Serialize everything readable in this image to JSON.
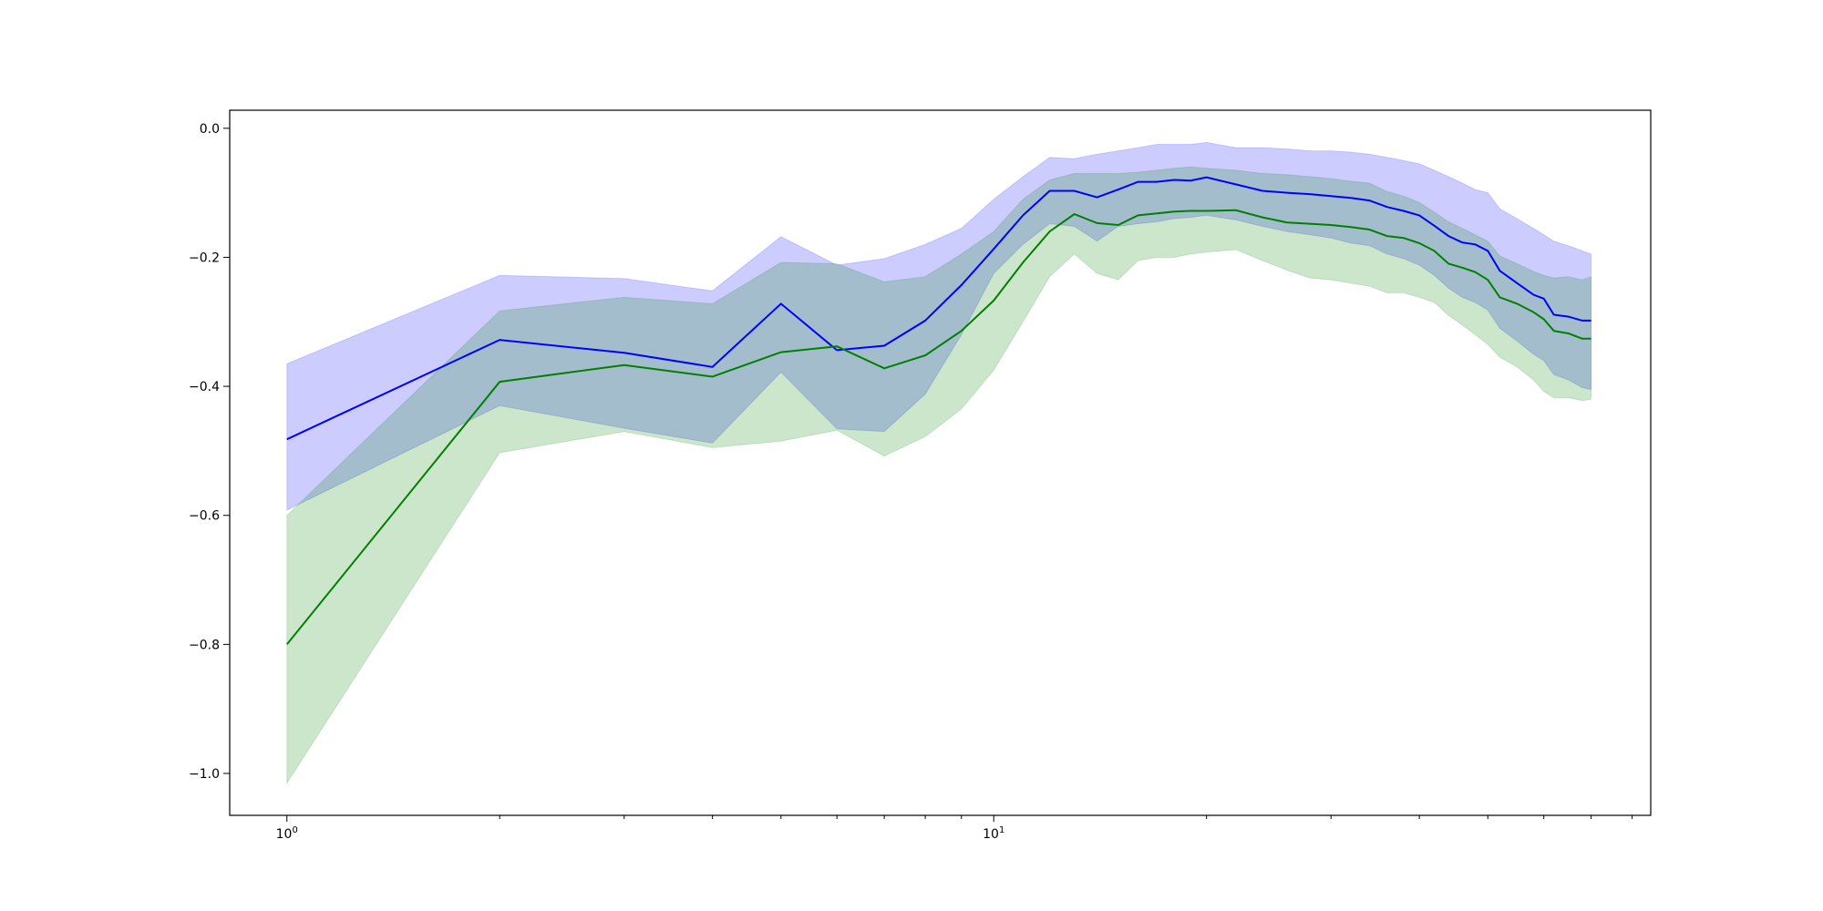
{
  "chart_data": {
    "type": "line",
    "title": "",
    "xlabel": "",
    "ylabel": "",
    "x_scale": "log",
    "xlim": [
      0.83,
      85
    ],
    "ylim": [
      -1.065,
      0.028
    ],
    "grid": false,
    "x_ticks": [
      {
        "value": 1,
        "base": "10",
        "exp": "0"
      },
      {
        "value": 10,
        "base": "10",
        "exp": "1"
      }
    ],
    "x_minor_ticks": [
      2,
      3,
      4,
      5,
      6,
      7,
      8,
      9,
      20,
      30,
      40,
      50,
      60,
      70,
      80
    ],
    "y_ticks": [
      {
        "value": 0.0,
        "label": "0.0"
      },
      {
        "value": -0.2,
        "label": "−0.2"
      },
      {
        "value": -0.4,
        "label": "−0.4"
      },
      {
        "value": -0.6,
        "label": "−0.6"
      },
      {
        "value": -0.8,
        "label": "−0.8"
      },
      {
        "value": -1.0,
        "label": "−1.0"
      }
    ],
    "series": [
      {
        "color": "#0000ff",
        "band_color": "#0000ff",
        "band_opacity": 0.2,
        "x": [
          1,
          2,
          3,
          4,
          5,
          6,
          7,
          8,
          9,
          10,
          11,
          12,
          13,
          14,
          15,
          16,
          17,
          18,
          19,
          20,
          22,
          24,
          26,
          28,
          30,
          32,
          34,
          36,
          38,
          40,
          42,
          44,
          46,
          48,
          50,
          52,
          55,
          58,
          60,
          62,
          65,
          68,
          70
        ],
        "y": [
          -0.482,
          -0.328,
          -0.348,
          -0.37,
          -0.272,
          -0.344,
          -0.337,
          -0.298,
          -0.243,
          -0.187,
          -0.135,
          -0.097,
          -0.097,
          -0.107,
          -0.095,
          -0.083,
          -0.083,
          -0.08,
          -0.081,
          -0.076,
          -0.087,
          -0.097,
          -0.1,
          -0.102,
          -0.105,
          -0.108,
          -0.112,
          -0.122,
          -0.128,
          -0.135,
          -0.151,
          -0.167,
          -0.177,
          -0.18,
          -0.19,
          -0.221,
          -0.24,
          -0.258,
          -0.264,
          -0.289,
          -0.292,
          -0.298,
          -0.298
        ],
        "lower": [
          -0.592,
          -0.43,
          -0.465,
          -0.488,
          -0.378,
          -0.466,
          -0.47,
          -0.412,
          -0.32,
          -0.225,
          -0.18,
          -0.148,
          -0.152,
          -0.175,
          -0.152,
          -0.148,
          -0.145,
          -0.14,
          -0.138,
          -0.135,
          -0.142,
          -0.152,
          -0.16,
          -0.165,
          -0.17,
          -0.178,
          -0.182,
          -0.195,
          -0.202,
          -0.212,
          -0.228,
          -0.248,
          -0.262,
          -0.27,
          -0.282,
          -0.31,
          -0.33,
          -0.35,
          -0.36,
          -0.382,
          -0.39,
          -0.402,
          -0.405
        ],
        "upper": [
          -0.365,
          -0.228,
          -0.233,
          -0.252,
          -0.168,
          -0.212,
          -0.202,
          -0.18,
          -0.155,
          -0.11,
          -0.075,
          -0.045,
          -0.047,
          -0.04,
          -0.035,
          -0.03,
          -0.025,
          -0.025,
          -0.025,
          -0.022,
          -0.03,
          -0.03,
          -0.032,
          -0.035,
          -0.035,
          -0.037,
          -0.04,
          -0.045,
          -0.05,
          -0.055,
          -0.065,
          -0.075,
          -0.085,
          -0.095,
          -0.1,
          -0.125,
          -0.14,
          -0.155,
          -0.165,
          -0.175,
          -0.182,
          -0.19,
          -0.195
        ]
      },
      {
        "color": "#008000",
        "band_color": "#008000",
        "band_opacity": 0.2,
        "x": [
          1,
          2,
          3,
          4,
          5,
          6,
          7,
          8,
          9,
          10,
          11,
          12,
          13,
          14,
          15,
          16,
          17,
          18,
          19,
          20,
          22,
          24,
          26,
          28,
          30,
          32,
          34,
          36,
          38,
          40,
          42,
          44,
          46,
          48,
          50,
          52,
          55,
          58,
          60,
          62,
          65,
          68,
          70
        ],
        "y": [
          -0.8,
          -0.393,
          -0.367,
          -0.385,
          -0.347,
          -0.338,
          -0.372,
          -0.352,
          -0.314,
          -0.267,
          -0.208,
          -0.16,
          -0.133,
          -0.147,
          -0.15,
          -0.135,
          -0.132,
          -0.129,
          -0.128,
          -0.128,
          -0.127,
          -0.138,
          -0.146,
          -0.148,
          -0.15,
          -0.153,
          -0.157,
          -0.167,
          -0.17,
          -0.178,
          -0.19,
          -0.21,
          -0.216,
          -0.223,
          -0.235,
          -0.262,
          -0.272,
          -0.285,
          -0.296,
          -0.314,
          -0.318,
          -0.326,
          -0.326
        ],
        "lower": [
          -1.015,
          -0.503,
          -0.47,
          -0.495,
          -0.485,
          -0.468,
          -0.508,
          -0.478,
          -0.435,
          -0.375,
          -0.3,
          -0.23,
          -0.195,
          -0.225,
          -0.235,
          -0.205,
          -0.2,
          -0.2,
          -0.195,
          -0.192,
          -0.188,
          -0.205,
          -0.22,
          -0.232,
          -0.235,
          -0.24,
          -0.245,
          -0.255,
          -0.255,
          -0.262,
          -0.27,
          -0.29,
          -0.305,
          -0.32,
          -0.335,
          -0.355,
          -0.37,
          -0.39,
          -0.408,
          -0.418,
          -0.418,
          -0.422,
          -0.42
        ],
        "upper": [
          -0.6,
          -0.283,
          -0.262,
          -0.272,
          -0.208,
          -0.21,
          -0.238,
          -0.23,
          -0.195,
          -0.16,
          -0.11,
          -0.08,
          -0.07,
          -0.07,
          -0.07,
          -0.068,
          -0.065,
          -0.062,
          -0.06,
          -0.062,
          -0.065,
          -0.07,
          -0.072,
          -0.075,
          -0.078,
          -0.082,
          -0.085,
          -0.098,
          -0.105,
          -0.115,
          -0.13,
          -0.145,
          -0.155,
          -0.165,
          -0.175,
          -0.198,
          -0.21,
          -0.222,
          -0.228,
          -0.232,
          -0.23,
          -0.235,
          -0.23
        ]
      }
    ]
  }
}
